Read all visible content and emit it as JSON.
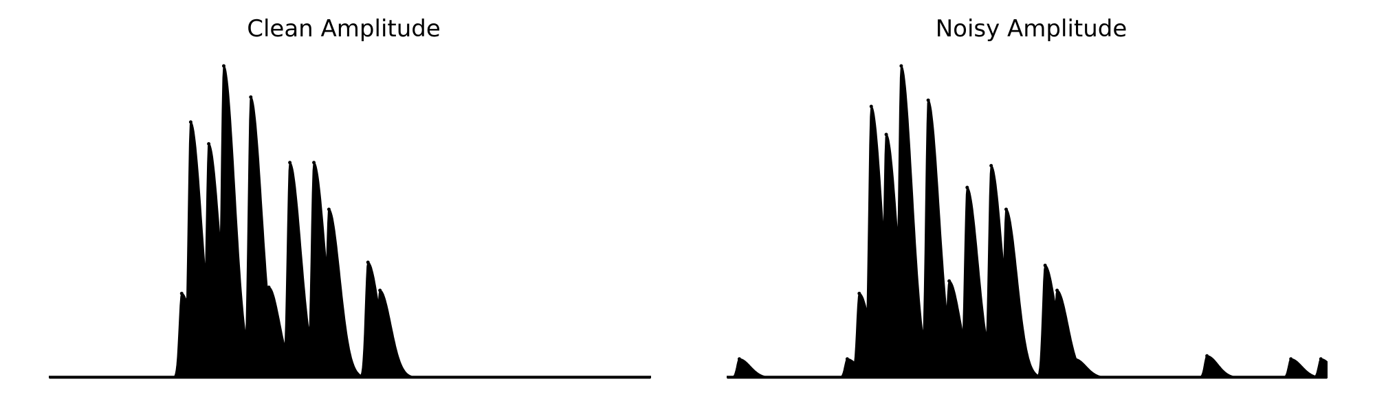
{
  "chart_data": [
    {
      "type": "line",
      "title": "Clean Amplitude",
      "xlabel": "",
      "ylabel": "",
      "axes": "off",
      "grid": false,
      "color": "#000000",
      "envelope_peaks": [
        {
          "x": 0.22,
          "y": 0.27
        },
        {
          "x": 0.235,
          "y": 0.82
        },
        {
          "x": 0.265,
          "y": 0.75
        },
        {
          "x": 0.29,
          "y": 1.0
        },
        {
          "x": 0.335,
          "y": 0.9
        },
        {
          "x": 0.365,
          "y": 0.29
        },
        {
          "x": 0.4,
          "y": 0.69
        },
        {
          "x": 0.44,
          "y": 0.69
        },
        {
          "x": 0.465,
          "y": 0.54
        },
        {
          "x": 0.53,
          "y": 0.37
        },
        {
          "x": 0.55,
          "y": 0.28
        }
      ]
    },
    {
      "type": "line",
      "title": "Noisy Amplitude",
      "xlabel": "",
      "ylabel": "",
      "axes": "off",
      "grid": false,
      "color": "#000000",
      "envelope_peaks": [
        {
          "x": 0.02,
          "y": 0.06
        },
        {
          "x": 0.2,
          "y": 0.06
        },
        {
          "x": 0.22,
          "y": 0.27
        },
        {
          "x": 0.24,
          "y": 0.87
        },
        {
          "x": 0.265,
          "y": 0.78
        },
        {
          "x": 0.29,
          "y": 1.0
        },
        {
          "x": 0.335,
          "y": 0.89
        },
        {
          "x": 0.37,
          "y": 0.31
        },
        {
          "x": 0.4,
          "y": 0.61
        },
        {
          "x": 0.44,
          "y": 0.68
        },
        {
          "x": 0.465,
          "y": 0.54
        },
        {
          "x": 0.53,
          "y": 0.36
        },
        {
          "x": 0.55,
          "y": 0.28
        },
        {
          "x": 0.58,
          "y": 0.06
        },
        {
          "x": 0.8,
          "y": 0.07
        },
        {
          "x": 0.94,
          "y": 0.06
        },
        {
          "x": 0.99,
          "y": 0.06
        }
      ]
    }
  ]
}
